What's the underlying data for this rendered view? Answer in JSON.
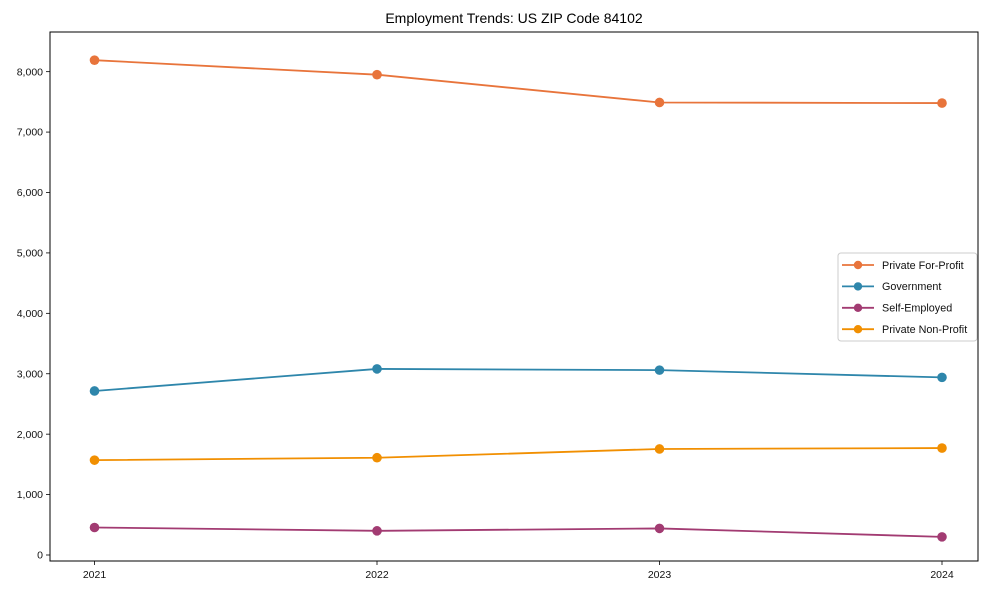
{
  "chart_data": {
    "type": "line",
    "title": "Employment Trends: US ZIP Code 84102",
    "xlabel": "",
    "ylabel": "",
    "x": [
      2021,
      2022,
      2023,
      2024
    ],
    "xtick_labels": [
      "2021",
      "2022",
      "2023",
      "2024"
    ],
    "ytick_values": [
      0,
      1000,
      2000,
      3000,
      4000,
      5000,
      6000,
      7000,
      8000
    ],
    "ytick_labels": [
      "0",
      "1,000",
      "2,000",
      "3,000",
      "4,000",
      "5,000",
      "6,000",
      "7,000",
      "8,000"
    ],
    "ylim": [
      0,
      8600
    ],
    "grid": false,
    "marker": "circle",
    "legend_position": "center right",
    "series": [
      {
        "name": "Private For-Profit",
        "color": "#E8743B",
        "values": [
          8190,
          7950,
          7490,
          7480
        ]
      },
      {
        "name": "Government",
        "color": "#2E86AB",
        "values": [
          2715,
          3080,
          3060,
          2940
        ]
      },
      {
        "name": "Self-Employed",
        "color": "#A23B72",
        "values": [
          455,
          400,
          440,
          300
        ]
      },
      {
        "name": "Private Non-Profit",
        "color": "#F18F01",
        "values": [
          1570,
          1610,
          1755,
          1770
        ]
      }
    ]
  }
}
